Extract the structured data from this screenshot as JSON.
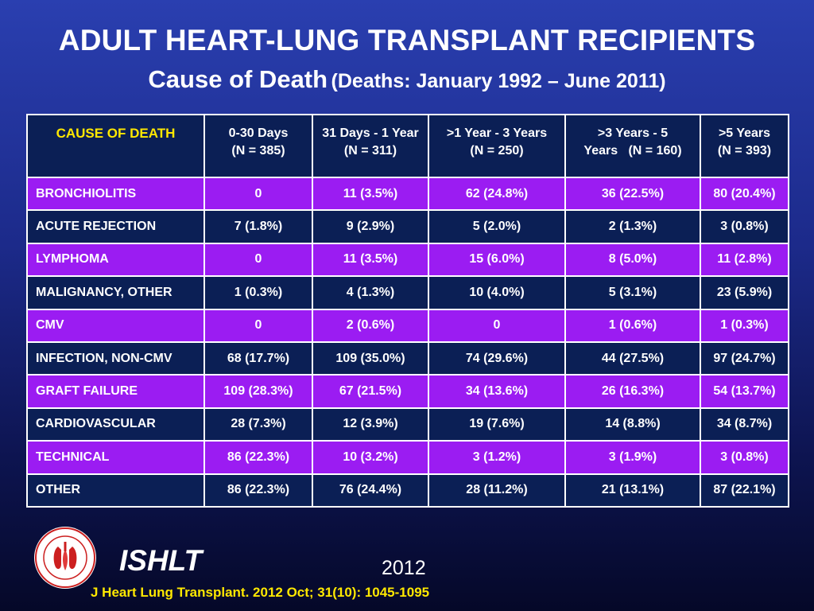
{
  "title": "ADULT HEART-LUNG TRANSPLANT RECIPIENTS",
  "subtitle": {
    "main": "Cause of Death",
    "paren": "(Deaths: January 1992 – June 2011)"
  },
  "table": {
    "headers": [
      {
        "line1": "CAUSE OF DEATH",
        "line2": ""
      },
      {
        "line1": "0-30 Days",
        "line2": "(N = 385)"
      },
      {
        "line1": "31 Days - 1 Year",
        "line2": "(N = 311)"
      },
      {
        "line1": ">1 Year - 3 Years",
        "line2": "(N = 250)"
      },
      {
        "line1": ">3 Years - 5",
        "line2": "Years   (N = 160)"
      },
      {
        "line1": ">5 Years",
        "line2": "(N = 393)"
      }
    ],
    "rows": [
      [
        "BRONCHIOLITIS",
        "0",
        "11 (3.5%)",
        "62 (24.8%)",
        "36 (22.5%)",
        "80 (20.4%)"
      ],
      [
        "ACUTE REJECTION",
        "7 (1.8%)",
        "9 (2.9%)",
        "5 (2.0%)",
        "2 (1.3%)",
        "3 (0.8%)"
      ],
      [
        "LYMPHOMA",
        "0",
        "11 (3.5%)",
        "15 (6.0%)",
        "8 (5.0%)",
        "11 (2.8%)"
      ],
      [
        "MALIGNANCY, OTHER",
        "1 (0.3%)",
        "4 (1.3%)",
        "10 (4.0%)",
        "5 (3.1%)",
        "23 (5.9%)"
      ],
      [
        "CMV",
        "0",
        "2 (0.6%)",
        "0",
        "1 (0.6%)",
        "1 (0.3%)"
      ],
      [
        "INFECTION, NON-CMV",
        "68 (17.7%)",
        "109 (35.0%)",
        "74 (29.6%)",
        "44 (27.5%)",
        "97 (24.7%)"
      ],
      [
        "GRAFT FAILURE",
        "109 (28.3%)",
        "67 (21.5%)",
        "34 (13.6%)",
        "26 (16.3%)",
        "54 (13.7%)"
      ],
      [
        "CARDIOVASCULAR",
        "28 (7.3%)",
        "12 (3.9%)",
        "19 (7.6%)",
        "14 (8.8%)",
        "34 (8.7%)"
      ],
      [
        "TECHNICAL",
        "86 (22.3%)",
        "10 (3.2%)",
        "3 (1.2%)",
        "3 (1.9%)",
        "3 (0.8%)"
      ],
      [
        "OTHER",
        "86 (22.3%)",
        "76 (24.4%)",
        "28 (11.2%)",
        "21 (13.1%)",
        "87 (22.1%)"
      ]
    ]
  },
  "footer": {
    "logo_text": "International Society for Heart & Lung Transplantation",
    "brand": "ISHLT",
    "year": "2012",
    "citation": "J Heart Lung Transplant.  2012 Oct; 31(10): 1045-1095"
  },
  "colors": {
    "row_purple": "#9b1cf2",
    "row_navy": "#0b1f55",
    "accent_yellow": "#ffe800"
  }
}
